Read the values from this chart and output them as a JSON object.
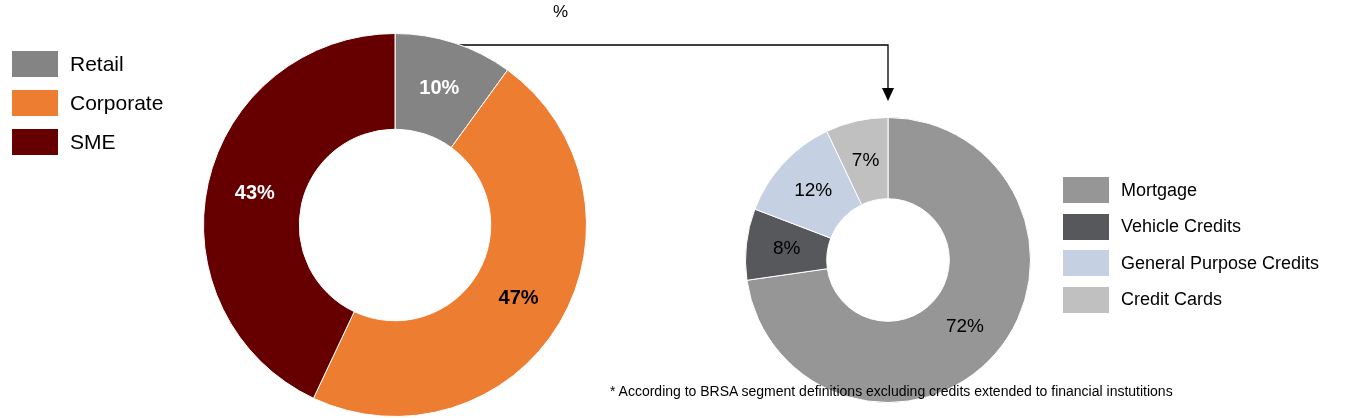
{
  "chart_data": [
    {
      "type": "donut",
      "categories": [
        "Retail",
        "Corporate",
        "SME"
      ],
      "values": [
        10,
        47,
        43
      ],
      "colors": [
        "#848484",
        "#ed7d31",
        "#660000"
      ],
      "value_labels": [
        "10%",
        "47%",
        "43%"
      ],
      "legend": "top left",
      "annotations": [
        "%"
      ]
    },
    {
      "type": "donut",
      "categories": [
        "Mortgage",
        "Vehicle Credits",
        "General Purpose Credits",
        "Credit Cards"
      ],
      "values": [
        72,
        8,
        12,
        7
      ],
      "colors": [
        "#969696",
        "#57585c",
        "#c5d0e2",
        "#c0c0c0"
      ],
      "value_labels": [
        "72%",
        "8%",
        "12%",
        "7%"
      ],
      "legend": "right",
      "annotations": [
        "* According to BRSA segment definitions excluding credits extended to financial instutitions"
      ]
    }
  ]
}
